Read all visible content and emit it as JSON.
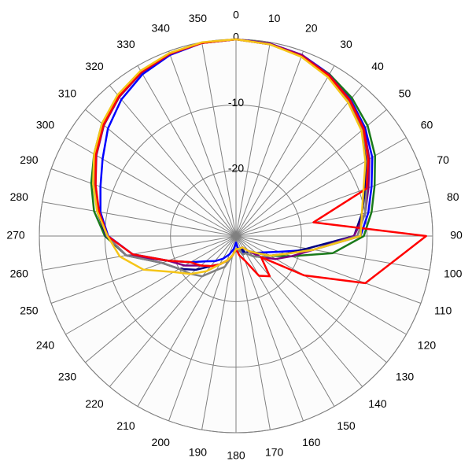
{
  "chart_data": {
    "type": "polar",
    "x": [
      0,
      10,
      20,
      30,
      40,
      50,
      60,
      70,
      80,
      90,
      100,
      110,
      120,
      130,
      140,
      150,
      160,
      170,
      180,
      190,
      200,
      210,
      220,
      230,
      240,
      250,
      260,
      270,
      280,
      290,
      300,
      310,
      320,
      330,
      340,
      350
    ],
    "ylim": [
      -30,
      0
    ],
    "yticks": [
      -20,
      -10,
      0
    ],
    "grid": true,
    "series": [
      {
        "color": "#0000ff",
        "values": [
          0,
          -0.2,
          -0.6,
          -1.5,
          -2.8,
          -4.3,
          -6,
          -8,
          -9.5,
          -11,
          -18,
          -23,
          -25,
          -26,
          -27,
          -28,
          -27,
          -28,
          -29,
          -28,
          -27,
          -26,
          -25,
          -24,
          -22,
          -19,
          -14,
          -10.5,
          -9,
          -8,
          -6.5,
          -4.5,
          -2.8,
          -1.5,
          -0.6,
          -0.1
        ]
      },
      {
        "color": "#1a7a1a",
        "values": [
          0,
          -0.3,
          -0.8,
          -1.5,
          -2.5,
          -3.8,
          -5.5,
          -7.5,
          -9,
          -10.5,
          -15,
          -21,
          -24,
          -25,
          -26,
          -27,
          -27,
          -28,
          -28,
          -27,
          -26,
          -25,
          -24,
          -23,
          -22,
          -19,
          -13,
          -10,
          -8,
          -6.5,
          -5,
          -3.3,
          -2,
          -1,
          -0.4,
          -0.1
        ]
      },
      {
        "color": "#000080",
        "values": [
          0,
          -0.2,
          -0.7,
          -1.7,
          -3,
          -4.8,
          -7,
          -9,
          -10.5,
          -12,
          -19,
          -22,
          -24,
          -26,
          -27,
          -27,
          -28,
          -28,
          -28,
          -27,
          -26,
          -25,
          -24,
          -22,
          -20,
          -18,
          -13,
          -10.2,
          -8.5,
          -7,
          -5.2,
          -3.6,
          -2.2,
          -1.1,
          -0.4,
          -0.1
        ]
      },
      {
        "color": "#800080",
        "values": [
          0,
          -0.2,
          -0.6,
          -1.6,
          -2.9,
          -4.5,
          -6.5,
          -8.5,
          -10,
          -12,
          -18,
          -21,
          -23,
          -25,
          -27,
          -28,
          -28,
          -28,
          -28,
          -27,
          -26,
          -25,
          -24,
          -23,
          -21,
          -19,
          -13,
          -10.3,
          -8.7,
          -7.2,
          -5.4,
          -3.7,
          -2.3,
          -1.2,
          -0.5,
          -0.1
        ]
      },
      {
        "color": "#808080",
        "values": [
          0,
          -0.3,
          -0.8,
          -1.8,
          -3.1,
          -4.7,
          -6.8,
          -8.8,
          -10,
          -11.5,
          -18,
          -22,
          -24,
          -25,
          -26,
          -27,
          -27,
          -28,
          -28,
          -27,
          -25,
          -24,
          -22,
          -21,
          -20,
          -18,
          -13,
          -10.3,
          -8.7,
          -7,
          -5.2,
          -3.5,
          -2.1,
          -1,
          -0.4,
          -0.1
        ]
      },
      {
        "color": "#ff0000",
        "values": [
          0,
          -0.3,
          -0.8,
          -1.7,
          -3,
          -4.6,
          -6.7,
          -8.8,
          -18,
          -1,
          -6,
          -9,
          -18,
          -25,
          -22,
          -23,
          -26,
          -27,
          -28,
          -27,
          -26,
          -25,
          -24,
          -23,
          -22,
          -19,
          -14,
          -10.4,
          -8.8,
          -7.2,
          -5.3,
          -3.6,
          -2.2,
          -1.1,
          -0.4,
          -0.1
        ]
      },
      {
        "color": "#f5c518",
        "values": [
          0,
          -0.3,
          -0.9,
          -2,
          -3.4,
          -5,
          -7.2,
          -9.3,
          -10.5,
          -11,
          -18,
          -22,
          -24,
          -26,
          -27,
          -28,
          -28,
          -28,
          -28,
          -27,
          -26,
          -25,
          -23,
          -21,
          -19,
          -15,
          -12,
          -10.4,
          -8.5,
          -6.8,
          -5,
          -3.3,
          -1.9,
          -0.9,
          -0.3,
          0
        ]
      }
    ]
  }
}
